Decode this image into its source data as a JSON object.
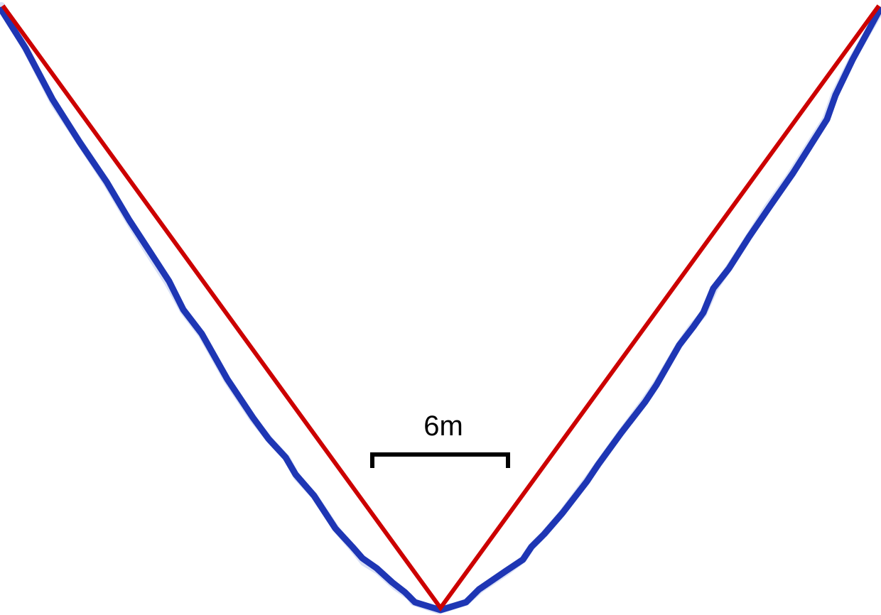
{
  "diagram": {
    "scale_bar": {
      "label": "6m",
      "color": "#000000"
    },
    "colors": {
      "straight_path": "#cc0000",
      "curved_path": "#1e36b4",
      "curved_path_halo": "#b9c6ee"
    }
  }
}
